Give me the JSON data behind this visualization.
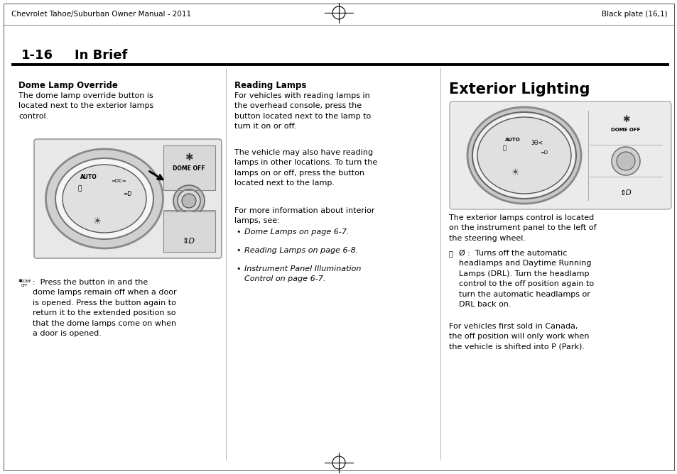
{
  "page_header_left": "Chevrolet Tahoe/Suburban Owner Manual - 2011",
  "page_header_right": "Black plate (16,1)",
  "col1_heading": "Dome Lamp Override",
  "col1_para1": "The dome lamp override button is\nlocated next to the exterior lamps\ncontrol.",
  "col1_symbol_desc": ":  Press the button in and the\ndome lamps remain off when a door\nis opened. Press the button again to\nreturn it to the extended position so\nthat the dome lamps come on when\na door is opened.",
  "col2_heading": "Reading Lamps",
  "col2_para1": "For vehicles with reading lamps in\nthe overhead console, press the\nbutton located next to the lamp to\nturn it on or off.",
  "col2_para2": "The vehicle may also have reading\nlamps in other locations. To turn the\nlamps on or off, press the button\nlocated next to the lamp.",
  "col2_para3": "For more information about interior\nlamps, see:",
  "col2_bullet1": "Dome Lamps on page 6-7.",
  "col2_bullet2": "Reading Lamps on page 6-8.",
  "col2_bullet3": "Instrument Panel Illumination\nControl on page 6-7.",
  "col3_heading": "Exterior Lighting",
  "col3_para1": "The exterior lamps control is located\non the instrument panel to the left of\nthe steering wheel.",
  "col3_para2_prefix": "Ø :  Turns off the automatic\nheadlamps and Daytime Running\nLamps (DRL). Turn the headlamp\ncontrol to the off position again to\nturn the automatic headlamps or\nDRL back on.",
  "col3_para3": "For vehicles first sold in Canada,\nthe off position will only work when\nthe vehicle is shifted into P (Park).",
  "bg_color": "#ffffff",
  "text_color": "#000000",
  "header_font_size": 7.5,
  "section_num": "1-16",
  "section_title": "In Brief",
  "section_font_size": 13,
  "col_heading_font_size": 8.5,
  "body_font_size": 8.0,
  "col3_heading_font_size": 15
}
